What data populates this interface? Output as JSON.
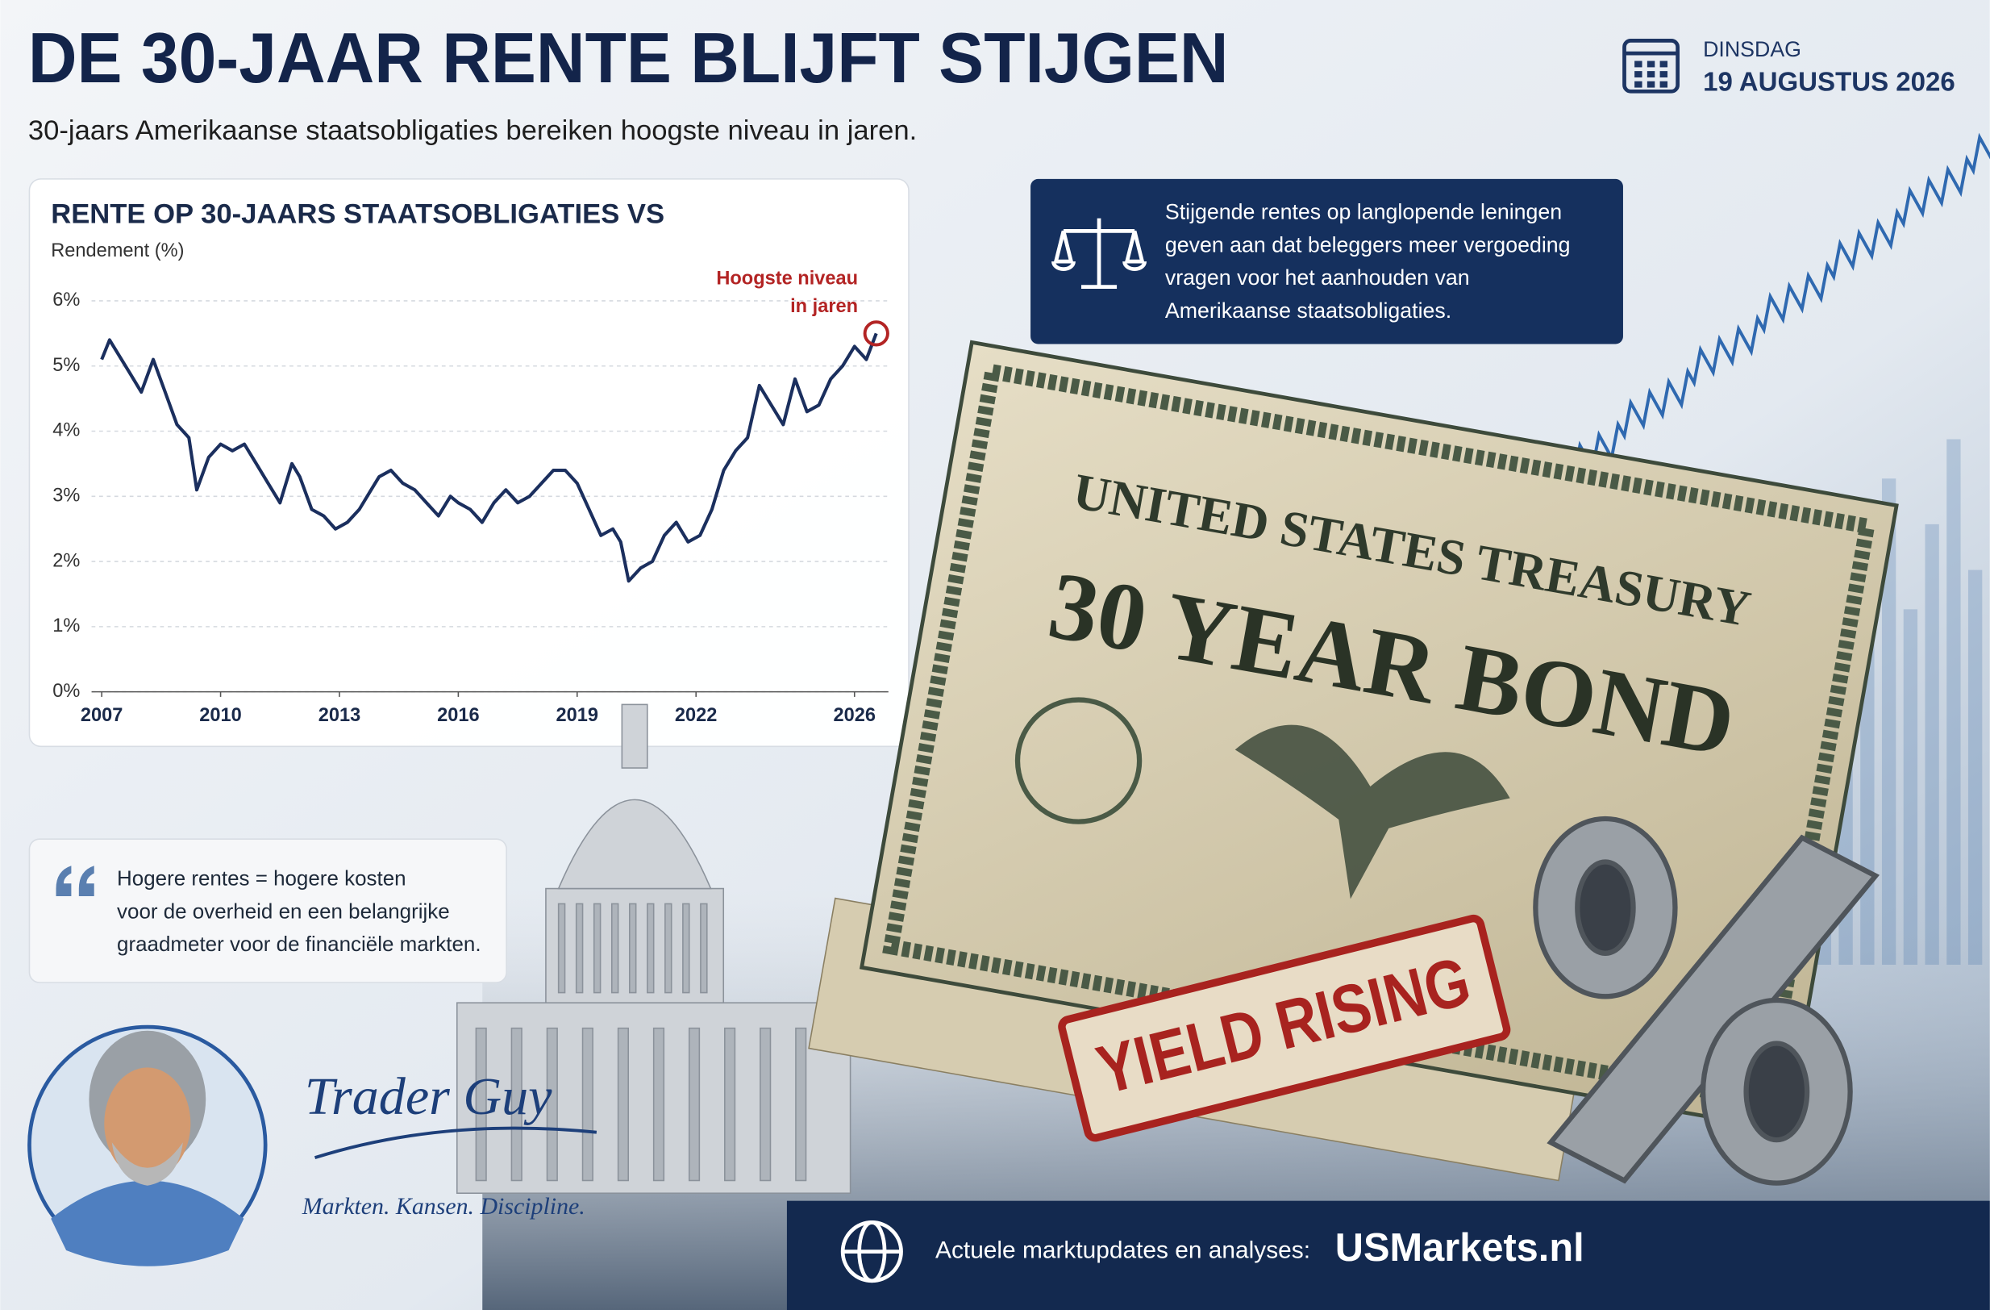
{
  "header": {
    "title": "DE 30-JAAR RENTE BLIJFT STIJGEN",
    "subtitle": "30-jaars Amerikaanse staatsobligaties bereiken hoogste niveau in jaren.",
    "day": "DINSDAG",
    "date": "19 AUGUSTUS 2026"
  },
  "chart_data": {
    "type": "line",
    "title": "RENTE OP 30-JAARS STAATSOBLIGATIES VS",
    "y_label": "Rendement (%)",
    "annotation": [
      "Hoogste niveau",
      "in jaren"
    ],
    "x": [
      2007.0,
      2007.2,
      2007.4,
      2007.7,
      2008.0,
      2008.3,
      2008.6,
      2008.9,
      2009.2,
      2009.4,
      2009.7,
      2010.0,
      2010.3,
      2010.6,
      2010.9,
      2011.2,
      2011.5,
      2011.8,
      2012.0,
      2012.3,
      2012.6,
      2012.9,
      2013.2,
      2013.5,
      2013.8,
      2014.0,
      2014.3,
      2014.6,
      2014.9,
      2015.2,
      2015.5,
      2015.8,
      2016.0,
      2016.3,
      2016.6,
      2016.9,
      2017.2,
      2017.5,
      2017.8,
      2018.1,
      2018.4,
      2018.7,
      2019.0,
      2019.3,
      2019.6,
      2019.9,
      2020.1,
      2020.3,
      2020.6,
      2020.9,
      2021.2,
      2021.5,
      2021.8,
      2022.1,
      2022.4,
      2022.7,
      2023.0,
      2023.3,
      2023.6,
      2023.9,
      2024.2,
      2024.5,
      2024.8,
      2025.1,
      2025.4,
      2025.7,
      2026.0,
      2026.3,
      2026.55
    ],
    "values": [
      5.1,
      5.4,
      5.2,
      4.9,
      4.6,
      5.1,
      4.6,
      4.1,
      3.9,
      3.1,
      3.6,
      3.8,
      3.7,
      3.8,
      3.5,
      3.2,
      2.9,
      3.5,
      3.3,
      2.8,
      2.7,
      2.5,
      2.6,
      2.8,
      3.1,
      3.3,
      3.4,
      3.2,
      3.1,
      2.9,
      2.7,
      3.0,
      2.9,
      2.8,
      2.6,
      2.9,
      3.1,
      2.9,
      3.0,
      3.2,
      3.4,
      3.4,
      3.2,
      2.8,
      2.4,
      2.5,
      2.3,
      1.7,
      1.9,
      2.0,
      2.4,
      2.6,
      2.3,
      2.4,
      2.8,
      3.4,
      3.7,
      3.9,
      4.7,
      4.4,
      4.1,
      4.8,
      4.3,
      4.4,
      4.8,
      5.0,
      5.3,
      5.1,
      5.5
    ],
    "color": "#1b2f5e",
    "xlim": [
      2007,
      2026.6
    ],
    "xticks": [
      2007,
      2010,
      2013,
      2016,
      2019,
      2022,
      2026
    ],
    "ylim": [
      0,
      6
    ],
    "yticks": [
      {
        "value": 0,
        "label": "0%"
      },
      {
        "value": 1,
        "label": "1%"
      },
      {
        "value": 2,
        "label": "2%"
      },
      {
        "value": 3,
        "label": "3%"
      },
      {
        "value": 4,
        "label": "4%"
      },
      {
        "value": 5,
        "label": "5%"
      },
      {
        "value": 6,
        "label": "6%"
      }
    ],
    "grid": true
  },
  "info_box": {
    "lines": [
      "Stijgende rentes op langlopende leningen",
      "geven aan dat beleggers meer vergoeding",
      "vragen voor het aanhouden van",
      "Amerikaanse staatsobligaties."
    ]
  },
  "quote": {
    "lines": [
      "Hogere rentes = hogere kosten",
      "voor de overheid en een belangrijke",
      "graadmeter voor de financiële markten."
    ]
  },
  "bond": {
    "issuer": "UNITED STATES TREASURY",
    "name": "30 YEAR BOND",
    "stamp": "YIELD RISING"
  },
  "author": {
    "name": "Trader Guy",
    "tagline": "Markten. Kansen. Discipline."
  },
  "footer": {
    "label": "Actuele marktupdates en analyses:",
    "site": "USMarkets.nl"
  }
}
